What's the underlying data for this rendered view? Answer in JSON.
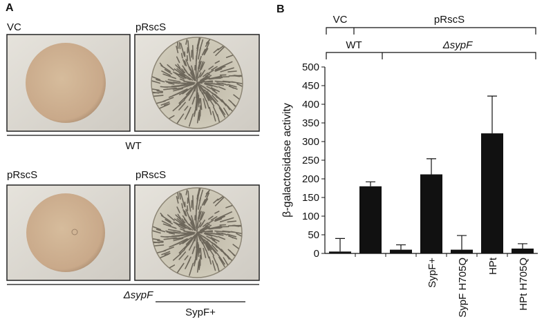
{
  "panel_a": {
    "label": "A",
    "top_row": {
      "left": "VC",
      "right": "pRscS",
      "strain": "WT"
    },
    "bottom_row": {
      "left": "pRscS",
      "right": "pRscS",
      "strain": "ΔsypF",
      "complement": "SypF+"
    }
  },
  "chart_data": {
    "type": "bar",
    "panel_label": "B",
    "plasmid_groups": [
      "VC",
      "pRscS"
    ],
    "strain_groups": [
      "WT",
      "ΔsypF"
    ],
    "y_label": "β-galactosidase activity",
    "categories": [
      null,
      null,
      null,
      "SypF+",
      "SypF H705Q",
      "HPt",
      "HPt H705Q"
    ],
    "values": [
      5,
      180,
      10,
      212,
      10,
      322,
      13
    ],
    "errors": [
      35,
      12,
      13,
      42,
      38,
      100,
      13
    ],
    "color": "#111111",
    "ylim": [
      0,
      500
    ],
    "yticks": [
      0,
      50,
      100,
      150,
      200,
      250,
      300,
      350,
      400,
      450,
      500
    ]
  }
}
